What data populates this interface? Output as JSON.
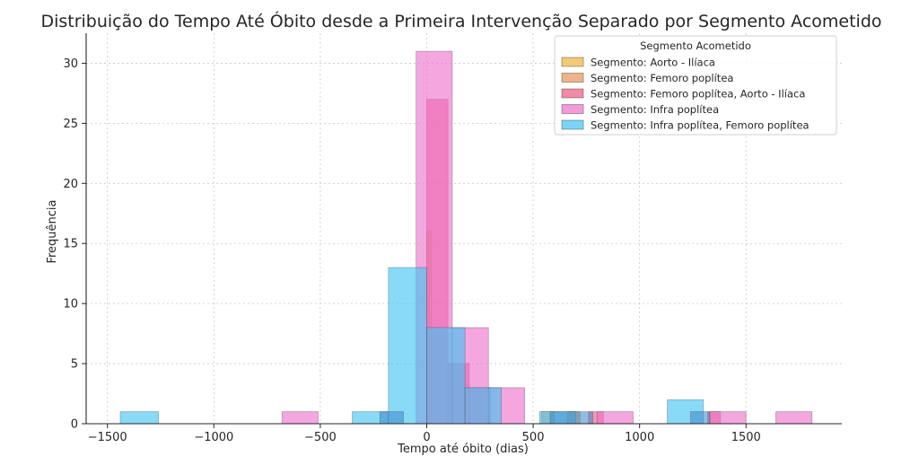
{
  "chart_data": {
    "type": "bar",
    "title": "Distribuição do Tempo Até Óbito desde a Primeira Intervenção Separado por Segmento Acometido",
    "xlabel": "Tempo até óbito (dias)",
    "ylabel": "Frequência",
    "xlim": [
      -1600,
      1950
    ],
    "ylim": [
      0,
      32.5
    ],
    "xticks": [
      -1500,
      -1000,
      -500,
      0,
      500,
      1000,
      1500
    ],
    "xtick_labels": [
      "−1500",
      "−1000",
      "−500",
      "0",
      "500",
      "1000",
      "1500"
    ],
    "yticks": [
      0,
      5,
      10,
      15,
      20,
      25,
      30
    ],
    "ytick_labels": [
      "0",
      "5",
      "10",
      "15",
      "20",
      "25",
      "30"
    ],
    "grid": true,
    "legend": {
      "title": "Segmento Acometido",
      "placement": "top-right"
    },
    "series": [
      {
        "name": "Segmento: Aorto - Ilíaca",
        "color": "#f0b43a",
        "bins": [
          {
            "x0": 0,
            "x1": 20,
            "count": 16
          }
        ]
      },
      {
        "name": "Segmento: Femoro poplítea",
        "color": "#e8935a",
        "bins": [
          {
            "x0": 540,
            "x1": 600,
            "count": 1
          },
          {
            "x0": 660,
            "x1": 720,
            "count": 1
          }
        ]
      },
      {
        "name": "Segmento: Femoro poplítea, Aorto - Ilíaca",
        "color": "#ec5a80",
        "bins": [
          {
            "x0": 0,
            "x1": 100,
            "count": 27
          },
          {
            "x0": 100,
            "x1": 200,
            "count": 5
          },
          {
            "x0": 200,
            "x1": 300,
            "count": 3
          },
          {
            "x0": 760,
            "x1": 830,
            "count": 1
          },
          {
            "x0": 1320,
            "x1": 1380,
            "count": 1
          }
        ]
      },
      {
        "name": "Segmento: Infra poplítea",
        "color": "#ee6fcb",
        "bins": [
          {
            "x0": -680,
            "x1": -510,
            "count": 1
          },
          {
            "x0": -50,
            "x1": 120,
            "count": 31
          },
          {
            "x0": 120,
            "x1": 290,
            "count": 8
          },
          {
            "x0": 290,
            "x1": 460,
            "count": 3
          },
          {
            "x0": 800,
            "x1": 970,
            "count": 1
          },
          {
            "x0": 1330,
            "x1": 1500,
            "count": 1
          },
          {
            "x0": 1640,
            "x1": 1810,
            "count": 1
          }
        ]
      },
      {
        "name": "Segmento: Infra poplítea, Femoro poplítea",
        "color": "#3fc3f2",
        "bins": [
          {
            "x0": -1440,
            "x1": -1260,
            "count": 1
          },
          {
            "x0": -350,
            "x1": -180,
            "count": 1
          },
          {
            "x0": -180,
            "x1": 0,
            "count": 13
          },
          {
            "x0": 0,
            "x1": 180,
            "count": 8
          },
          {
            "x0": 180,
            "x1": 350,
            "count": 3
          },
          {
            "x0": 530,
            "x1": 700,
            "count": 1
          },
          {
            "x0": 1130,
            "x1": 1300,
            "count": 2
          }
        ]
      }
    ],
    "extra_bins": [
      {
        "x0": -220,
        "x1": -110,
        "count": 1,
        "color": "#3a87c8"
      },
      {
        "x0": 580,
        "x1": 780,
        "count": 1,
        "color": "#3a87c8"
      },
      {
        "x0": 1240,
        "x1": 1330,
        "count": 1,
        "color": "#3a87c8"
      }
    ]
  }
}
